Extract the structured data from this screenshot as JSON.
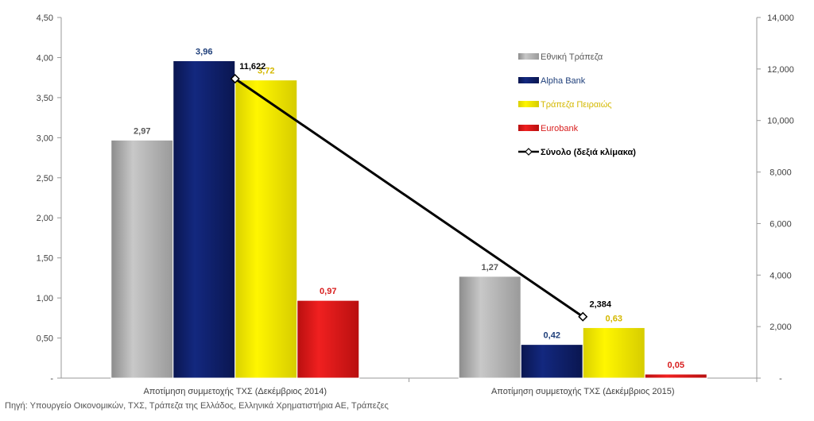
{
  "chart_data": {
    "type": "bar",
    "categories": [
      "Αποτίμηση συμμετοχής ΤΧΣ (Δεκέμβριος 2014)",
      "Αποτίμηση συμμετοχής ΤΧΣ (Δεκέμβριος 2015)"
    ],
    "series": [
      {
        "name": "Εθνική Τράπεζα",
        "values": [
          2.97,
          1.27
        ],
        "labels": [
          "2,97",
          "1,27"
        ],
        "color": "#b3b3b3",
        "label_color": "#595959"
      },
      {
        "name": "Alpha Bank",
        "values": [
          3.96,
          0.42
        ],
        "labels": [
          "3,96",
          "0,42"
        ],
        "color": "#0d1f6b",
        "label_color": "#1f3f7a"
      },
      {
        "name": "Τράπεζα Πειραιώς",
        "values": [
          3.72,
          0.63
        ],
        "labels": [
          "3,72",
          "0,63"
        ],
        "color": "#f2ea00",
        "label_color": "#d4b800"
      },
      {
        "name": "Eurobank",
        "values": [
          0.97,
          0.05
        ],
        "labels": [
          "0,97",
          "0,05"
        ],
        "color": "#e31b1b",
        "label_color": "#d81e1e"
      }
    ],
    "line_series": {
      "name": "Σύνολο (δεξιά κλίμακα)",
      "values": [
        11622,
        2384
      ],
      "labels": [
        "11,622",
        "2,384"
      ],
      "color": "#000000",
      "axis": "right"
    },
    "ylim": [
      0,
      4.5
    ],
    "y2lim": [
      0,
      14000
    ],
    "yticks": [
      "-",
      "0,50",
      "1,00",
      "1,50",
      "2,00",
      "2,50",
      "3,00",
      "3,50",
      "4,00",
      "4,50"
    ],
    "y2ticks": [
      "-",
      "2,000",
      "4,000",
      "6,000",
      "8,000",
      "10,000",
      "12,000",
      "14,000"
    ],
    "legend_position": "top-right",
    "grid": false
  },
  "source_note": "Πηγή: Υπουργείο Οικονομικών, ΤΧΣ, Τράπεζα της Ελλάδος, Ελληνικά Χρηματιστήρια ΑΕ, Τράπεζες"
}
